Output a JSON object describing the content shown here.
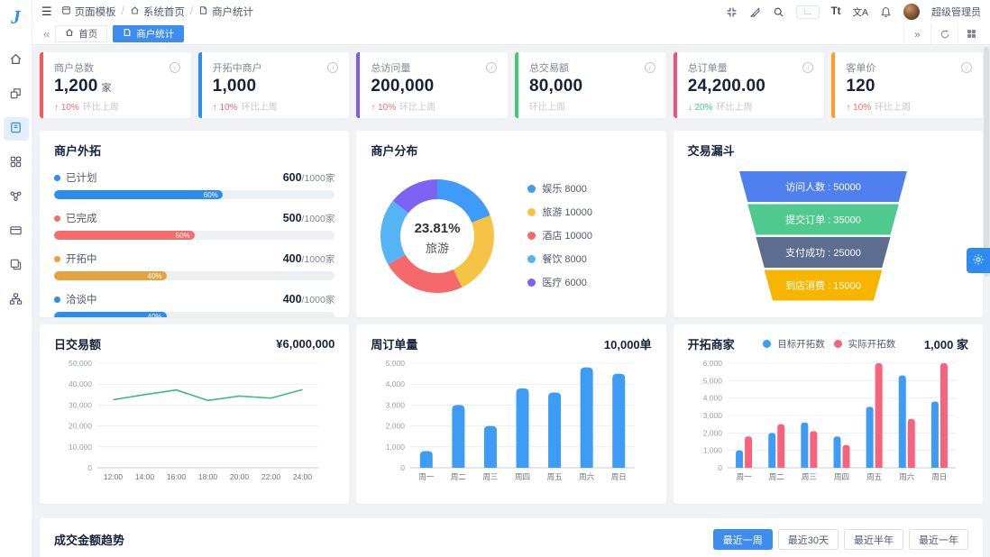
{
  "header": {
    "breadcrumb": [
      "页面模板",
      "系统首页",
      "商户统计"
    ],
    "font_size_label": "Tt",
    "translate_label": "文A",
    "user_name": "超级管理员"
  },
  "tabs": {
    "home": "首页",
    "active": "商户统计"
  },
  "accent": "#3d8cf0",
  "stat_cards": [
    {
      "title": "商户总数",
      "value": "1,200",
      "unit": "家",
      "trend_arrow": "↑",
      "trend_pct": "10%",
      "trend_color": "#f56c6c",
      "footer": "环比上周",
      "stripe": "#f5575e"
    },
    {
      "title": "开拓中商户",
      "value": "1,000",
      "unit": "",
      "trend_arrow": "↑",
      "trend_pct": "10%",
      "trend_color": "#f56c6c",
      "footer": "环比上周",
      "stripe": "#2d8cf0"
    },
    {
      "title": "总访问量",
      "value": "200,000",
      "unit": "",
      "trend_arrow": "↑",
      "trend_pct": "10%",
      "trend_color": "#f56c6c",
      "footer": "环比上周",
      "stripe": "#7c5cf0"
    },
    {
      "title": "总交易额",
      "value": "80,000",
      "unit": "",
      "trend_arrow": "",
      "trend_pct": "",
      "trend_color": "",
      "footer": "环比上周",
      "stripe": "#3ecb75"
    },
    {
      "title": "总订单量",
      "value": "24,200.00",
      "unit": "",
      "trend_arrow": "↓",
      "trend_pct": "20%",
      "trend_color": "#3ecb75",
      "footer": "环比上周",
      "stripe": "#f0527d"
    },
    {
      "title": "客单价",
      "value": "120",
      "unit": "",
      "trend_arrow": "↑",
      "trend_pct": "10%",
      "trend_color": "#f56c6c",
      "footer": "环比上周",
      "stripe": "#ff9a2e"
    }
  ],
  "outreach": {
    "title": "商户外拓",
    "rows": [
      {
        "label": "已计划",
        "value": "600",
        "total": "/1000家",
        "pct": 60,
        "color": "#2d8cf0"
      },
      {
        "label": "已完成",
        "value": "500",
        "total": "/1000家",
        "pct": 50,
        "color": "#f56c6c"
      },
      {
        "label": "开拓中",
        "value": "400",
        "total": "/1000家",
        "pct": 40,
        "color": "#e6a23c"
      },
      {
        "label": "洽谈中",
        "value": "400",
        "total": "/1000家",
        "pct": 40,
        "color": "#2d8cf0"
      }
    ]
  },
  "distribution": {
    "title": "商户分布"
  },
  "funnel_panel": {
    "title": "交易漏斗"
  },
  "daily": {
    "title": "日交易额",
    "total": "¥6,000,000"
  },
  "weekly": {
    "title": "周订单量",
    "total": "10,000单"
  },
  "merchants": {
    "title": "开拓商家",
    "total": "1,000 家"
  },
  "trend": {
    "title": "成交金额趋势",
    "buttons": [
      "最近一周",
      "最近30天",
      "最近半年",
      "最近一年"
    ],
    "active_index": 0
  },
  "chart_data": [
    {
      "type": "pie",
      "title": "商户分布",
      "labels": [
        "娱乐",
        "旅游",
        "酒店",
        "餐饮",
        "医疗"
      ],
      "values": [
        8000,
        10000,
        10000,
        8000,
        6000
      ],
      "colors": [
        "#3f9bfa",
        "#f6c445",
        "#f5686c",
        "#54b4f6",
        "#7e62f4"
      ],
      "center_percent": "23.81%",
      "center_label": "旅游",
      "legend_position": "right",
      "donut": true
    },
    {
      "type": "funnel",
      "title": "交易漏斗",
      "labels": [
        "访问人数",
        "提交订单",
        "支付成功",
        "到店消费"
      ],
      "values": [
        50000,
        35000,
        25000,
        15000
      ],
      "colors": [
        "#5080f0",
        "#50c98e",
        "#5c6d90",
        "#f8b500"
      ]
    },
    {
      "type": "line",
      "title": "日交易额",
      "x": [
        "12:00",
        "14:00",
        "16:00",
        "18:00",
        "20:00",
        "22:00",
        "24:00"
      ],
      "values": [
        32500,
        35000,
        37200,
        32200,
        34300,
        33300,
        37400
      ],
      "ylim": [
        0,
        50000
      ],
      "ytick_step": 10000,
      "color": "#42b883",
      "grid": true,
      "xlabel": "",
      "ylabel": ""
    },
    {
      "type": "bar",
      "title": "周订单量",
      "categories": [
        "周一",
        "周二",
        "周三",
        "周四",
        "周五",
        "周六",
        "周日"
      ],
      "values": [
        800,
        3000,
        2000,
        3800,
        3600,
        4800,
        4500
      ],
      "ylim": [
        0,
        5000
      ],
      "ytick_step": 1000,
      "color": "#3d9cf5",
      "grid": true
    },
    {
      "type": "bar",
      "title": "开拓商家",
      "categories": [
        "周一",
        "周二",
        "周三",
        "周四",
        "周五",
        "周六",
        "周日"
      ],
      "series": [
        {
          "name": "目标开拓数",
          "color": "#3d9cf5",
          "values": [
            1000,
            2000,
            2600,
            1800,
            3500,
            5300,
            3800
          ]
        },
        {
          "name": "实际开拓数",
          "color": "#f8627c",
          "values": [
            1800,
            2500,
            2100,
            1300,
            6000,
            2800,
            6000
          ]
        }
      ],
      "ylim": [
        0,
        6000
      ],
      "ytick_step": 1000,
      "grid": true,
      "legend_position": "top"
    }
  ]
}
